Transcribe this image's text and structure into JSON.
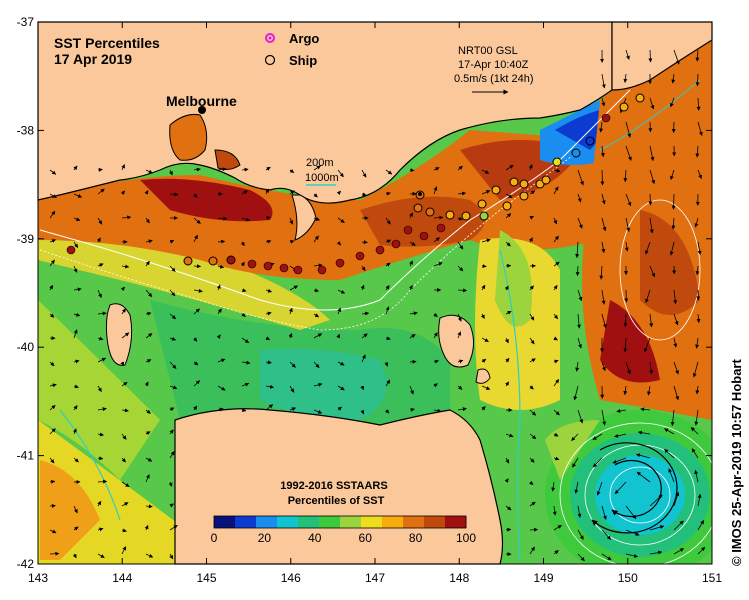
{
  "title": {
    "line1": "SST Percentiles",
    "line2": "17 Apr 2019"
  },
  "legend": {
    "argo_label": "Argo",
    "ship_label": "Ship",
    "argo_color": "#e21de2",
    "ship_color": "#000000"
  },
  "city": {
    "name": "Melbourne"
  },
  "currents": {
    "line1": "NRT00 GSL",
    "line2": "17-Apr 10:40Z",
    "line3": "0.5m/s (1kt 24h)"
  },
  "depth_contours": {
    "shallow": "200m",
    "deep": "1000m",
    "deep_color": "#2ecfc0"
  },
  "colorbar": {
    "title1": "1992-2016 SSTAARS",
    "title2": "Percentiles of SST",
    "ticks": [
      "0",
      "20",
      "40",
      "60",
      "80",
      "100"
    ],
    "colors": [
      "#08107a",
      "#0b3bd0",
      "#1a8ef0",
      "#12c4d0",
      "#22c07a",
      "#3fc93c",
      "#9bd43c",
      "#eedc1e",
      "#f8ac10",
      "#e07010",
      "#c04a0e",
      "#a01010"
    ]
  },
  "axes": {
    "x_ticks": [
      "143",
      "144",
      "145",
      "146",
      "147",
      "148",
      "149",
      "150",
      "151"
    ],
    "y_ticks": [
      "-37",
      "-38",
      "-39",
      "-40",
      "-41",
      "-42"
    ]
  },
  "credit": "© IMOS 25-Apr-2019 10:57 Hobart",
  "colors": {
    "land": "#fbc89b",
    "coast": "#000000"
  }
}
